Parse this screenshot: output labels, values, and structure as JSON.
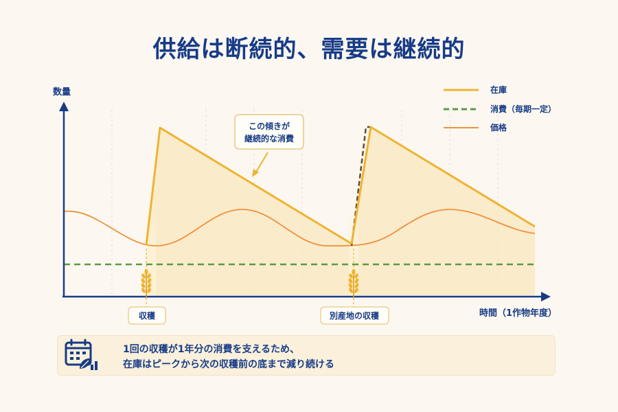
{
  "title": "供給は断続的、需要は継続的",
  "axes": {
    "y_label": "数量",
    "x_label": "時間（1作物年度）"
  },
  "legend": [
    {
      "label": "在庫",
      "style": "solid",
      "color": "#efb331"
    },
    {
      "label": "消費（毎期一定）",
      "style": "dashed",
      "color": "#5a9a44"
    },
    {
      "label": "価格",
      "style": "solid",
      "color": "#ef913a"
    }
  ],
  "callout": {
    "line1": "この傾きが",
    "line2": "継続的な消費"
  },
  "harvest_labels": [
    "収穫",
    "別産地の収穫"
  ],
  "note": {
    "line1": "1回の収穫が1年分の消費を支えるため、",
    "line2": "在庫はピークから次の収穫前の底まで減り続ける"
  },
  "colors": {
    "title": "#173b86",
    "axis": "#173b86",
    "inventory": "#efb331",
    "consumption": "#5a9a44",
    "price": "#ef913a",
    "alt_supply": "#6b4a2f",
    "callout_border": "#e8c77e",
    "note_bg": "#faf0db"
  },
  "icons": {
    "harvest": "wheat-icon",
    "note": "calendar-chart-icon"
  }
}
